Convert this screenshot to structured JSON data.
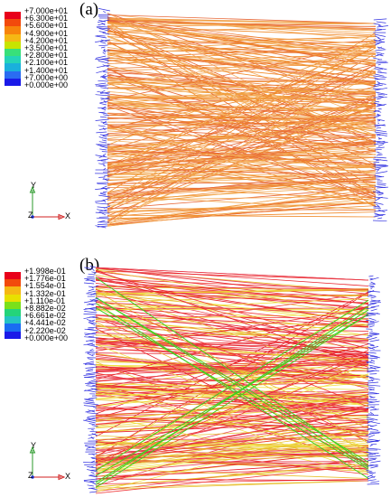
{
  "panels": [
    {
      "id": "a",
      "label": "(a)",
      "legend": {
        "labels": [
          "+7.000e+01",
          "+6.300e+01",
          "+5.600e+01",
          "+4.900e+01",
          "+4.200e+01",
          "+3.500e+01",
          "+2.800e+01",
          "+2.100e+01",
          "+1.400e+01",
          "+7.000e+00",
          "+0.000e+00"
        ],
        "colors": [
          "#e8001a",
          "#f24a0c",
          "#f7840b",
          "#f5b814",
          "#c8e400",
          "#38e07a",
          "#24d4b8",
          "#1ab0dc",
          "#2a6cf2",
          "#1a1ae8"
        ]
      },
      "axes": {
        "y": "Y",
        "z": "Z",
        "x": "X"
      },
      "fiber_colors": [
        "#f0a040",
        "#f08a2a",
        "#e86a3a",
        "#f5b060",
        "#ec7a34"
      ],
      "tow_color": "#3030e0"
    },
    {
      "id": "b",
      "label": "(b)",
      "legend": {
        "labels": [
          "+1.998e-01",
          "+1.776e-01",
          "+1.554e-01",
          "+1.332e-01",
          "+1.110e-01",
          "+8.882e-02",
          "+6.661e-02",
          "+4.441e-02",
          "+2.220e-02",
          "+0.000e+00"
        ],
        "colors": [
          "#e8001a",
          "#f24a0c",
          "#f5b814",
          "#e8e000",
          "#7ae01a",
          "#24d47a",
          "#24c4c4",
          "#1a6cf2",
          "#1a1ae8"
        ]
      },
      "axes": {
        "y": "Y",
        "z": "Z",
        "x": "X"
      },
      "fiber_colors": [
        "#e8202a",
        "#f03a3a",
        "#e8c030",
        "#f0e040",
        "#e84050"
      ],
      "highlight_color": "#40d020",
      "tow_color": "#3030e0"
    }
  ]
}
